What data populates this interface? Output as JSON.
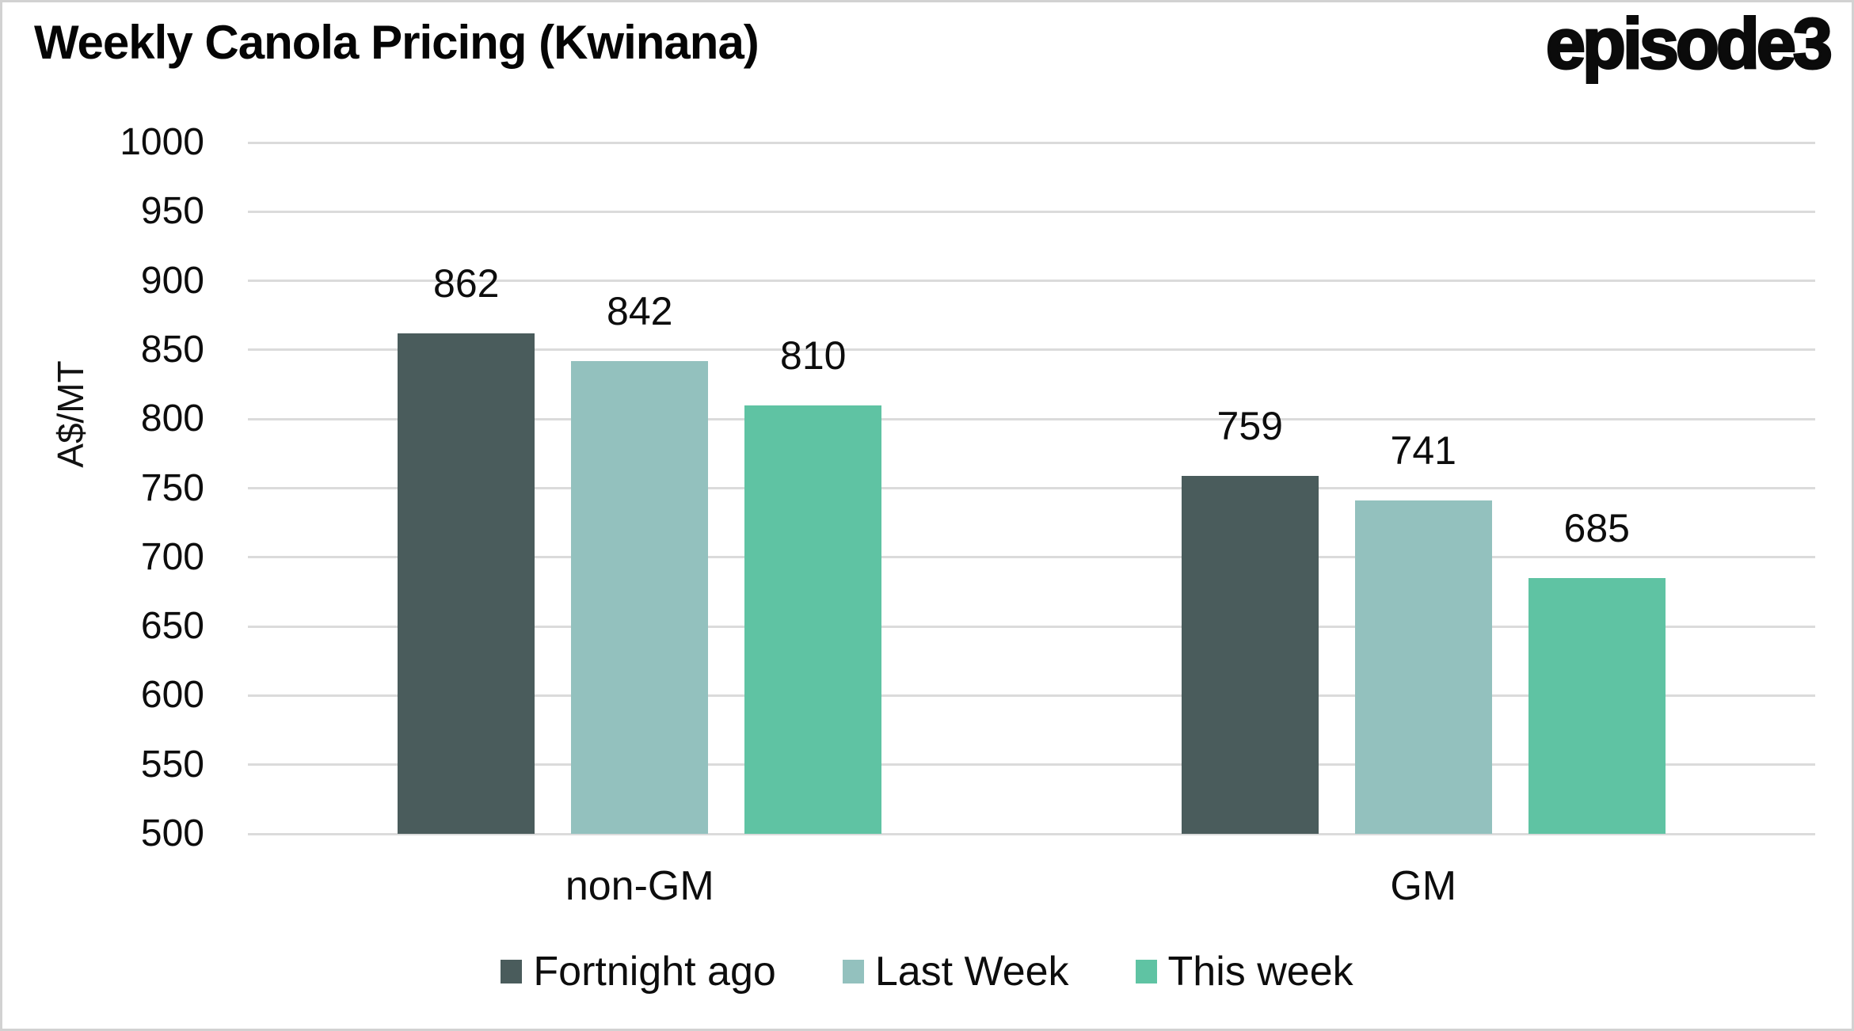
{
  "header": {
    "title": "Weekly Canola Pricing (Kwinana)",
    "logo_text": "episode3"
  },
  "chart_data": {
    "type": "bar",
    "title": "Weekly Canola Pricing (Kwinana)",
    "categories": [
      "non-GM",
      "GM"
    ],
    "series": [
      {
        "name": "Fortnight ago",
        "color": "#4A5C5C",
        "values": [
          862,
          759
        ]
      },
      {
        "name": "Last Week",
        "color": "#93C1BE",
        "values": [
          842,
          741
        ]
      },
      {
        "name": "This week",
        "color": "#5FC3A3",
        "values": [
          810,
          685
        ]
      }
    ],
    "ylabel": "A$/MT",
    "ylim": [
      500,
      1000
    ],
    "ytick_step": 50,
    "grid": true,
    "legend_position": "bottom",
    "bar_value_labels": true
  },
  "colors": {
    "gridline": "#DBDBDB",
    "text": "#0D0D0D",
    "background": "#FFFFFF",
    "frame_border": "#D2D2D2"
  }
}
